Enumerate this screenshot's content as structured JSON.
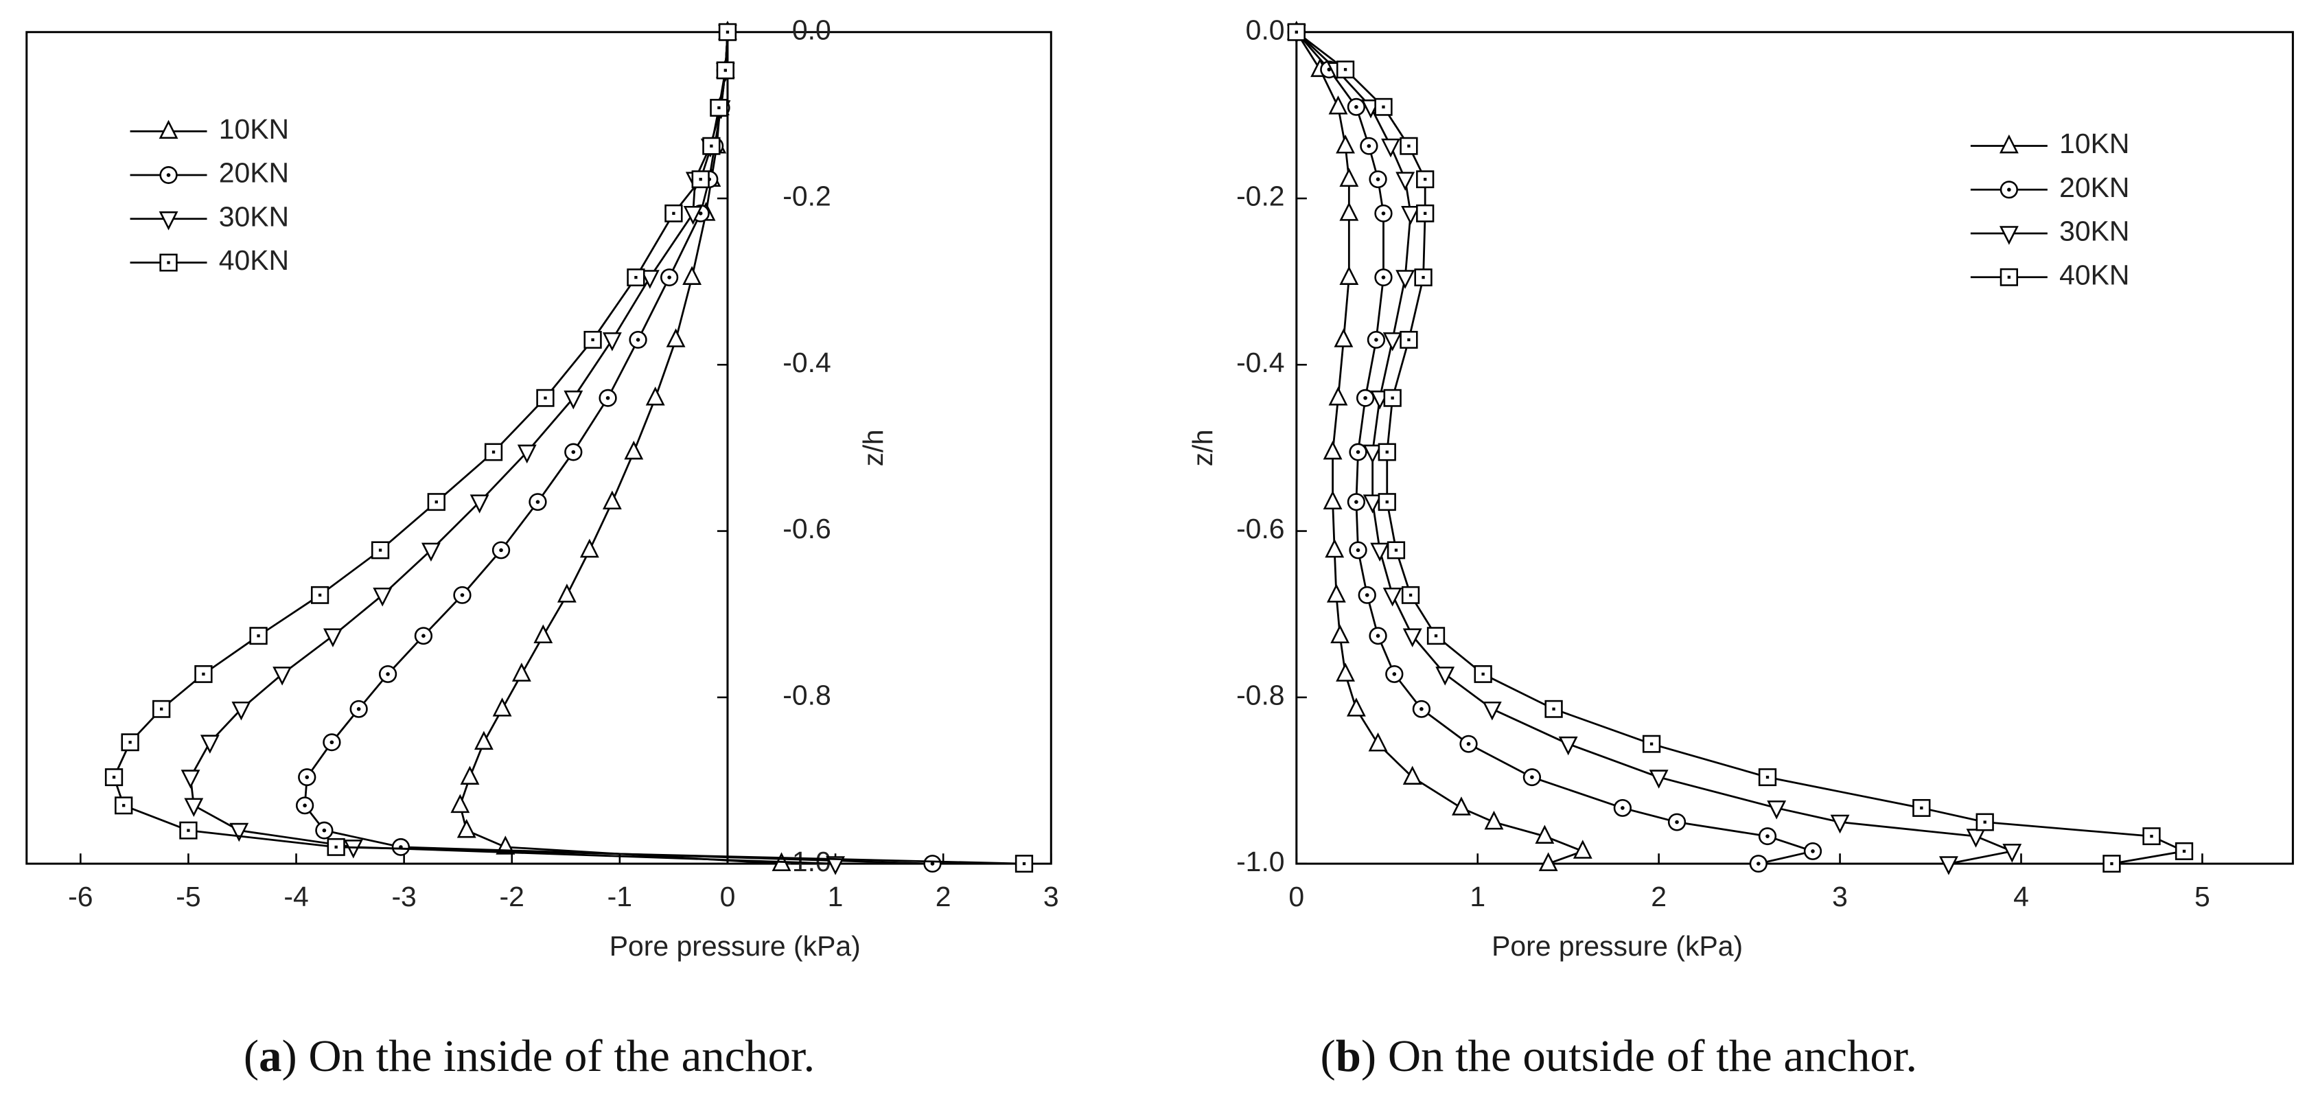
{
  "chart_data": [
    {
      "type": "line",
      "caption": "(a) On the inside of the anchor.",
      "xlabel": "Pore pressure (kPa)",
      "ylabel": "z/h",
      "xlim": [
        -6.5,
        3
      ],
      "ylim": [
        -1,
        0
      ],
      "xticks": [
        -6,
        -5,
        -4,
        -3,
        -2,
        -1,
        0,
        1,
        2,
        3
      ],
      "yticks": [
        {
          "value": 0,
          "label": "0.0"
        },
        -0.2,
        -0.4,
        -0.6,
        -0.8,
        {
          "value": -1,
          "label": "-1.0"
        }
      ],
      "legend": "upper left",
      "color": "#000000",
      "series": [
        {
          "name": "10KN",
          "marker": "triangle",
          "x": [
            0,
            -0.02,
            -0.07,
            -0.1,
            -0.15,
            -0.2,
            -0.33,
            -0.48,
            -0.67,
            -0.87,
            -1.07,
            -1.28,
            -1.49,
            -1.71,
            -1.91,
            -2.09,
            -2.26,
            -2.39,
            -2.48,
            -2.42,
            -2.06,
            0.5
          ],
          "y": [
            0,
            -0.046,
            -0.091,
            -0.137,
            -0.177,
            -0.218,
            -0.295,
            -0.37,
            -0.44,
            -0.505,
            -0.565,
            -0.623,
            -0.677,
            -0.726,
            -0.772,
            -0.814,
            -0.854,
            -0.896,
            -0.93,
            -0.96,
            -0.98,
            -1.0
          ]
        },
        {
          "name": "20KN",
          "marker": "circle",
          "x": [
            0,
            -0.02,
            -0.06,
            -0.12,
            -0.17,
            -0.25,
            -0.54,
            -0.83,
            -1.11,
            -1.43,
            -1.76,
            -2.1,
            -2.46,
            -2.82,
            -3.15,
            -3.42,
            -3.67,
            -3.9,
            -3.92,
            -3.74,
            -3.03,
            1.9
          ],
          "y": [
            0,
            -0.046,
            -0.091,
            -0.137,
            -0.177,
            -0.218,
            -0.295,
            -0.37,
            -0.44,
            -0.505,
            -0.565,
            -0.623,
            -0.677,
            -0.726,
            -0.772,
            -0.814,
            -0.854,
            -0.896,
            -0.93,
            -0.96,
            -0.98,
            -1.0
          ]
        },
        {
          "name": "30KN",
          "marker": "triangle-down",
          "x": [
            0,
            -0.02,
            -0.06,
            -0.16,
            -0.3,
            -0.32,
            -0.72,
            -1.07,
            -1.43,
            -1.86,
            -2.3,
            -2.75,
            -3.2,
            -3.66,
            -4.13,
            -4.51,
            -4.8,
            -4.98,
            -4.95,
            -4.53,
            -3.47,
            1.0
          ],
          "y": [
            0,
            -0.046,
            -0.091,
            -0.137,
            -0.177,
            -0.218,
            -0.295,
            -0.37,
            -0.44,
            -0.505,
            -0.565,
            -0.623,
            -0.677,
            -0.726,
            -0.772,
            -0.814,
            -0.854,
            -0.896,
            -0.93,
            -0.96,
            -0.98,
            -1.0
          ]
        },
        {
          "name": "40KN",
          "marker": "square",
          "x": [
            0,
            -0.02,
            -0.08,
            -0.15,
            -0.25,
            -0.5,
            -0.85,
            -1.25,
            -1.69,
            -2.17,
            -2.7,
            -3.22,
            -3.78,
            -4.35,
            -4.86,
            -5.25,
            -5.54,
            -5.69,
            -5.6,
            -5.0,
            -3.63,
            2.75
          ],
          "y": [
            0,
            -0.046,
            -0.091,
            -0.137,
            -0.177,
            -0.218,
            -0.295,
            -0.37,
            -0.44,
            -0.505,
            -0.565,
            -0.623,
            -0.677,
            -0.726,
            -0.772,
            -0.814,
            -0.854,
            -0.896,
            -0.93,
            -0.96,
            -0.98,
            -1.0
          ]
        }
      ]
    },
    {
      "type": "line",
      "caption": "(b) On the outside of the anchor.",
      "xlabel": "Pore pressure (kPa)",
      "ylabel": "z/h",
      "xlim": [
        0,
        5.5
      ],
      "ylim": [
        -1,
        0
      ],
      "xticks": [
        0,
        1,
        2,
        3,
        4,
        5
      ],
      "yticks": [
        {
          "value": 0,
          "label": "0.0"
        },
        -0.2,
        -0.4,
        -0.6,
        -0.8,
        {
          "value": -1,
          "label": "-1.0"
        }
      ],
      "legend": "upper right",
      "color": "#000000",
      "series": [
        {
          "name": "10KN",
          "marker": "triangle",
          "x": [
            0,
            0.13,
            0.23,
            0.27,
            0.29,
            0.29,
            0.29,
            0.26,
            0.23,
            0.2,
            0.2,
            0.21,
            0.22,
            0.24,
            0.27,
            0.33,
            0.45,
            0.64,
            0.91,
            1.09,
            1.37,
            1.58,
            1.39
          ],
          "y": [
            0,
            -0.045,
            -0.09,
            -0.137,
            -0.177,
            -0.218,
            -0.295,
            -0.37,
            -0.44,
            -0.505,
            -0.565,
            -0.623,
            -0.677,
            -0.726,
            -0.772,
            -0.814,
            -0.856,
            -0.896,
            -0.933,
            -0.95,
            -0.967,
            -0.985,
            -1.0
          ]
        },
        {
          "name": "20KN",
          "marker": "circle",
          "x": [
            0,
            0.18,
            0.33,
            0.4,
            0.45,
            0.48,
            0.48,
            0.44,
            0.38,
            0.34,
            0.33,
            0.34,
            0.39,
            0.45,
            0.54,
            0.69,
            0.95,
            1.3,
            1.8,
            2.1,
            2.6,
            2.85,
            2.55
          ],
          "y": [
            0,
            -0.045,
            -0.09,
            -0.137,
            -0.177,
            -0.218,
            -0.295,
            -0.37,
            -0.44,
            -0.505,
            -0.565,
            -0.623,
            -0.677,
            -0.726,
            -0.772,
            -0.814,
            -0.856,
            -0.896,
            -0.933,
            -0.95,
            -0.967,
            -0.985,
            -1.0
          ]
        },
        {
          "name": "30KN",
          "marker": "triangle-down",
          "x": [
            0,
            0.22,
            0.41,
            0.52,
            0.6,
            0.63,
            0.6,
            0.53,
            0.46,
            0.42,
            0.42,
            0.46,
            0.53,
            0.64,
            0.82,
            1.08,
            1.5,
            2.0,
            2.65,
            3.0,
            3.75,
            3.95,
            3.6
          ],
          "y": [
            0,
            -0.045,
            -0.09,
            -0.137,
            -0.177,
            -0.218,
            -0.295,
            -0.37,
            -0.44,
            -0.505,
            -0.565,
            -0.623,
            -0.677,
            -0.726,
            -0.772,
            -0.814,
            -0.856,
            -0.896,
            -0.933,
            -0.95,
            -0.967,
            -0.985,
            -1.0
          ]
        },
        {
          "name": "40KN",
          "marker": "square",
          "x": [
            0,
            0.27,
            0.48,
            0.62,
            0.71,
            0.71,
            0.7,
            0.62,
            0.53,
            0.5,
            0.5,
            0.55,
            0.63,
            0.77,
            1.03,
            1.42,
            1.96,
            2.6,
            3.45,
            3.8,
            4.72,
            4.9,
            4.5
          ],
          "y": [
            0,
            -0.045,
            -0.09,
            -0.137,
            -0.177,
            -0.218,
            -0.295,
            -0.37,
            -0.44,
            -0.505,
            -0.565,
            -0.623,
            -0.677,
            -0.726,
            -0.772,
            -0.814,
            -0.856,
            -0.896,
            -0.933,
            -0.95,
            -0.967,
            -0.985,
            -1.0
          ]
        }
      ]
    }
  ]
}
